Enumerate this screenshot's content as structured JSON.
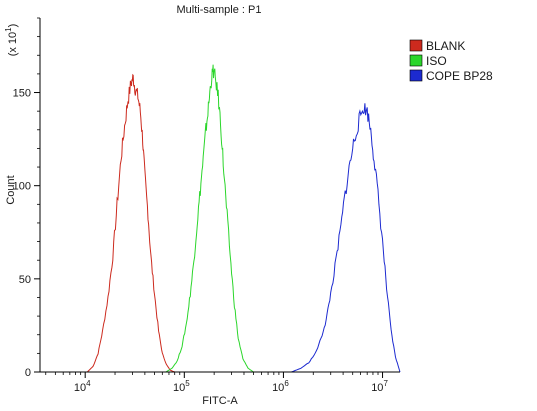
{
  "chart_data": {
    "type": "line",
    "title": "Multi-sample : P1",
    "xlabel": "FITC-A",
    "ylabel": "Count",
    "y_multiplier": "(x 10",
    "y_multiplier_exp": "1",
    "y_multiplier_close": ")",
    "x_scale": "log",
    "xlim": [
      3500,
      15000000
    ],
    "ylim": [
      0,
      190
    ],
    "x_ticks": [
      {
        "value": 10000,
        "base": "10",
        "exp": "4"
      },
      {
        "value": 100000,
        "base": "10",
        "exp": "5"
      },
      {
        "value": 1000000,
        "base": "10",
        "exp": "6"
      },
      {
        "value": 10000000,
        "base": "10",
        "exp": "7"
      }
    ],
    "y_ticks": [
      {
        "value": 0,
        "label": "0"
      },
      {
        "value": 50,
        "label": "50"
      },
      {
        "value": 100,
        "label": "100"
      },
      {
        "value": 150,
        "label": "150"
      }
    ],
    "grid": false,
    "legend_position": "top-right",
    "series": [
      {
        "name": "BLANK",
        "color": "#cc2a1e",
        "x": [
          10500,
          12000,
          13500,
          15000,
          17000,
          19000,
          21000,
          23000,
          25000,
          27000,
          29000,
          30500,
          32000,
          34000,
          36000,
          38000,
          40000,
          43000,
          46000,
          50000,
          55000,
          60000,
          66000,
          72000,
          80000
        ],
        "y": [
          0,
          3,
          10,
          22,
          40,
          62,
          90,
          115,
          132,
          146,
          155,
          158,
          152,
          148,
          140,
          125,
          105,
          85,
          62,
          42,
          22,
          10,
          4,
          1,
          0
        ]
      },
      {
        "name": "ISO",
        "color": "#2bd62b",
        "x": [
          65000,
          75000,
          85000,
          95000,
          105000,
          115000,
          125000,
          135000,
          145000,
          155000,
          165000,
          175000,
          185000,
          195000,
          205000,
          220000,
          235000,
          250000,
          270000,
          295000,
          320000,
          350000,
          390000,
          440000,
          500000
        ],
        "y": [
          0,
          2,
          6,
          14,
          26,
          42,
          60,
          80,
          98,
          114,
          130,
          142,
          155,
          162,
          158,
          148,
          130,
          108,
          84,
          58,
          36,
          18,
          7,
          2,
          0
        ]
      },
      {
        "name": "COPE BP28",
        "color": "#1c2ad0",
        "x": [
          1200000,
          1500000,
          1800000,
          2100000,
          2400000,
          2700000,
          3000000,
          3400000,
          3800000,
          4200000,
          4700000,
          5200000,
          5800000,
          6400000,
          7000000,
          7600000,
          8200000,
          9000000,
          10000000,
          11000000,
          12200000,
          13500000,
          15000000
        ],
        "y": [
          0,
          2,
          5,
          10,
          18,
          28,
          42,
          60,
          78,
          96,
          112,
          125,
          135,
          142,
          140,
          130,
          115,
          95,
          70,
          45,
          22,
          8,
          0
        ]
      }
    ]
  }
}
